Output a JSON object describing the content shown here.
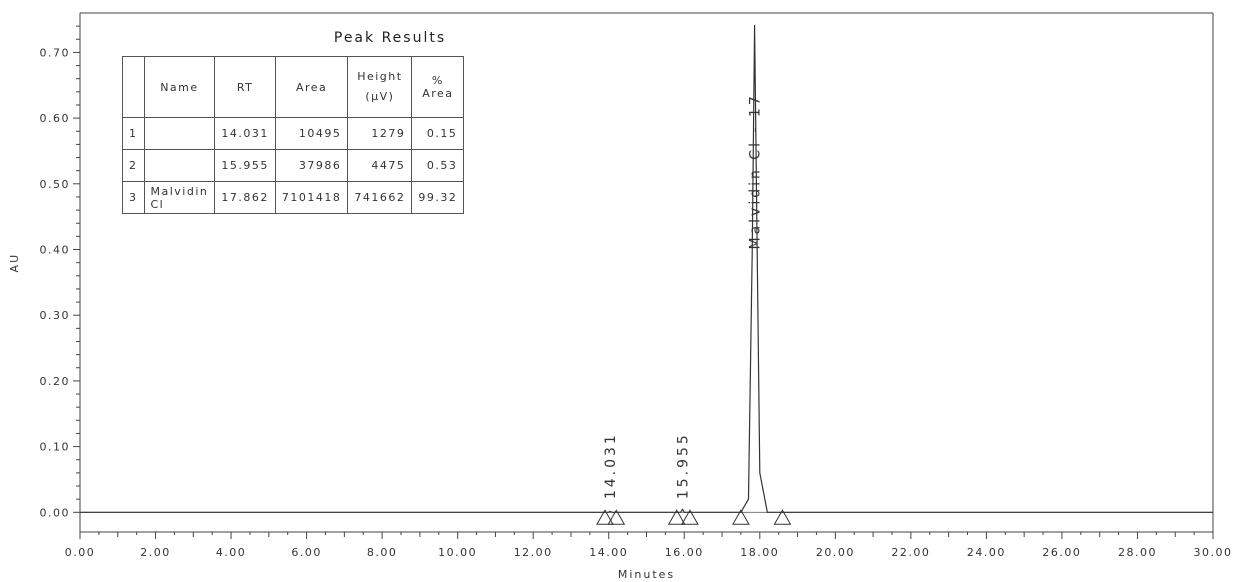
{
  "chart_data": {
    "type": "line",
    "xlabel": "Minutes",
    "ylabel": "AU",
    "xlim": [
      0,
      30
    ],
    "ylim": [
      -0.03,
      0.76
    ],
    "x_ticks": [
      "0.00",
      "2.00",
      "4.00",
      "6.00",
      "8.00",
      "10.00",
      "12.00",
      "14.00",
      "16.00",
      "18.00",
      "20.00",
      "22.00",
      "24.00",
      "26.00",
      "28.00",
      "30.00"
    ],
    "y_ticks": [
      "0.00",
      "0.10",
      "0.20",
      "0.30",
      "0.40",
      "0.50",
      "0.60",
      "0.70"
    ],
    "grid": false,
    "series": [
      {
        "x": [
          0,
          14.0,
          14.031,
          14.1,
          15.9,
          15.955,
          16.0,
          17.5,
          17.7,
          17.8,
          17.862,
          17.93,
          18.0,
          18.2,
          30.0
        ],
        "values": [
          0.0,
          0.0,
          0.0013,
          0.0,
          0.0,
          0.0045,
          0.0,
          0.0,
          0.02,
          0.4,
          0.742,
          0.4,
          0.06,
          0.0,
          0.0
        ]
      }
    ],
    "peak_annotations": [
      {
        "rt": 14.031,
        "label": "14.031"
      },
      {
        "rt": 15.955,
        "label": "15.955"
      },
      {
        "rt": 17.862,
        "label": "Malvidin Cl - 17"
      }
    ],
    "integration_markers": [
      13.9,
      14.2,
      15.8,
      16.15,
      17.5,
      18.6
    ]
  },
  "peak_table": {
    "title": "Peak Results",
    "headers": [
      "",
      "Name",
      "RT",
      "Area",
      "Height\n(µV)",
      "% Area"
    ],
    "rows": [
      {
        "idx": "1",
        "name": "",
        "rt": "14.031",
        "area": "10495",
        "height": "1279",
        "pct": "0.15"
      },
      {
        "idx": "2",
        "name": "",
        "rt": "15.955",
        "area": "37986",
        "height": "4475",
        "pct": "0.53"
      },
      {
        "idx": "3",
        "name": "Malvidin Cl",
        "rt": "17.862",
        "area": "7101418",
        "height": "741662",
        "pct": "99.32"
      }
    ]
  }
}
